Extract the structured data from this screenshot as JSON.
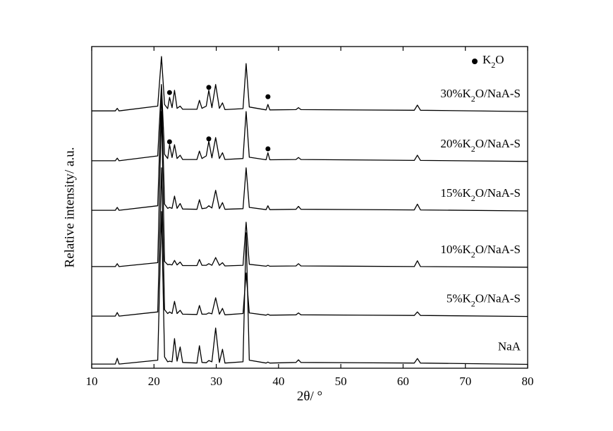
{
  "chart_data": {
    "type": "line",
    "xlabel": "2θ/ °",
    "ylabel": "Relative intensity/ a.u.",
    "xlim": [
      10,
      80
    ],
    "xticks": [
      10,
      20,
      30,
      40,
      50,
      60,
      70,
      80
    ],
    "ylim": [
      0,
      100
    ],
    "x": [
      10,
      13.8,
      14.1,
      14.4,
      20.6,
      21.2,
      21.7,
      22.2,
      22.5,
      22.9,
      23.3,
      23.7,
      24.2,
      24.6,
      26.9,
      27.3,
      27.7,
      28.4,
      28.8,
      29.3,
      29.9,
      30.5,
      31.0,
      31.4,
      34.3,
      34.8,
      35.3,
      38.0,
      38.3,
      38.6,
      42.8,
      43.2,
      43.6,
      61.8,
      62.3,
      62.8,
      80
    ],
    "series": [
      {
        "name": "NaA",
        "color": "#000000",
        "values": [
          1.3,
          1.3,
          3.1,
          1.3,
          2.5,
          48.7,
          3.5,
          2,
          2.2,
          2.0,
          9.2,
          2.2,
          6.6,
          1.8,
          1.6,
          7,
          1.8,
          1.7,
          2.4,
          2,
          12.5,
          1.8,
          5.9,
          1.6,
          2,
          42.1,
          2.5,
          1.6,
          1.9,
          1.6,
          1.8,
          2.6,
          1.8,
          1.6,
          3,
          1.6,
          1.2
        ]
      },
      {
        "name": "5%K2O/NaA-S",
        "color": "#000000",
        "values": [
          16.2,
          16.2,
          17.3,
          16.2,
          17.5,
          62.3,
          18.2,
          17,
          17.5,
          17,
          20.8,
          17,
          18,
          16.8,
          16.7,
          19.5,
          16.8,
          16.8,
          17.2,
          16.9,
          21.9,
          16.8,
          18.6,
          16.6,
          17,
          29.6,
          17.2,
          16.5,
          16.8,
          16.5,
          16.6,
          17.2,
          16.6,
          16.4,
          17.5,
          16.4,
          16.1
        ]
      },
      {
        "name": "10%K2O/NaA-S",
        "color": "#000000",
        "values": [
          31.6,
          31.6,
          32.5,
          31.6,
          32.8,
          79.8,
          33.2,
          32.2,
          32.3,
          32.1,
          33.5,
          32.1,
          33,
          31.9,
          31.9,
          33.8,
          32,
          32,
          32.5,
          32,
          34.4,
          32,
          32.8,
          31.8,
          32,
          45.4,
          32.3,
          31.7,
          32,
          31.7,
          31.8,
          32.5,
          31.8,
          31.6,
          33.4,
          31.6,
          31.4
        ]
      },
      {
        "name": "15%K2O/NaA-S",
        "color": "#000000",
        "values": [
          49.1,
          49.1,
          50,
          49.1,
          50.5,
          86,
          51,
          49.7,
          50,
          49.7,
          53.5,
          49.7,
          51.2,
          49.5,
          49.4,
          52.4,
          49.6,
          49.8,
          50.5,
          49.8,
          55.3,
          49.6,
          51.5,
          49.4,
          49.6,
          62.3,
          50,
          49.3,
          50.5,
          49.3,
          49.4,
          50.3,
          49.4,
          49.2,
          51,
          49.2,
          48.9
        ]
      },
      {
        "name": "20%K2O/NaA-S",
        "color": "#000000",
        "values": [
          64.5,
          64.5,
          65.3,
          64.5,
          66,
          88.2,
          66.5,
          65.2,
          69.5,
          65.5,
          69.5,
          65.2,
          66.2,
          64.9,
          64.9,
          67.5,
          65.2,
          66,
          70.6,
          65.4,
          71.7,
          65.2,
          67,
          64.9,
          65.2,
          79.8,
          65.6,
          64.8,
          67,
          64.8,
          64.9,
          65.5,
          64.9,
          64.6,
          66.2,
          64.6,
          64.3
        ]
      },
      {
        "name": "30%K2O/NaA-S",
        "color": "#000000",
        "values": [
          80,
          80,
          80.8,
          80,
          81.5,
          96.9,
          82,
          80.7,
          84.2,
          81,
          86.4,
          80.8,
          81.5,
          80.5,
          80.5,
          83.3,
          80.8,
          81.5,
          86.4,
          81,
          88.2,
          80.8,
          82.5,
          80.4,
          80.7,
          94.7,
          81.2,
          80.3,
          82,
          80.3,
          80.4,
          81,
          80.4,
          80.2,
          81.8,
          80.2,
          79.8
        ]
      }
    ],
    "markers": {
      "name": "K2O",
      "color": "#000000",
      "x": [
        22.5,
        28.8,
        38.3,
        22.5,
        28.8,
        38.3
      ],
      "y": [
        70.4,
        71.3,
        68.2,
        85.7,
        87.3,
        84.4
      ]
    }
  }
}
